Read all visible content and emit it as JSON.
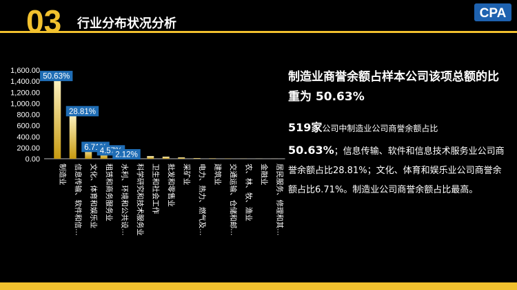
{
  "header": {
    "section_number": "03",
    "section_title": "行业分布状况分析",
    "logo_text": "CPA"
  },
  "colors": {
    "accent": "#F2C12E",
    "label_box": "#1F6DB5",
    "bar_top": "#FFF6C8",
    "bar_bottom": "#C79A10"
  },
  "chart_data": {
    "type": "bar",
    "categories": [
      "制造业",
      "信息传输、软件和信…",
      "文化、体育和娱乐业",
      "租赁和商务服务业",
      "水利、环境和公共设…",
      "科学研究和技术服务业",
      "卫生和社会工作",
      "批发和零售业",
      "采矿业",
      "电力、热力、燃气及…",
      "建筑业",
      "交通运输、仓储和邮…",
      "农、林、牧、渔业",
      "金融业",
      "居民服务、修理和其…"
    ],
    "values": [
      1475,
      840,
      195,
      133,
      62,
      55,
      48,
      38,
      25,
      12,
      8,
      6,
      4,
      3,
      2
    ],
    "data_labels": [
      "50.63%",
      "28.81%",
      "6.71%",
      "4.57%",
      "2.12%",
      "",
      "",
      "",
      "",
      "",
      "",
      "",
      "",
      "",
      ""
    ],
    "yticks": [
      "0.00",
      "200.00",
      "400.00",
      "600.00",
      "800.00",
      "1,000.00",
      "1,200.00",
      "1,400.00",
      "1,600.00"
    ],
    "ylim": [
      0,
      1600
    ],
    "title": "",
    "xlabel": "",
    "ylabel": ""
  },
  "right": {
    "headline": "制造业商誉余额占样本公司该项总额的比重为 50.63%",
    "count_big": "519家",
    "count_text": "公司中制造业公司商誉余额占比",
    "pct_big": "50.63%",
    "desc_text": "；信息传输、软件和信息技术服务业公司商誉余额占比28.81%；文化、体育和娱乐业公司商誉余额占比6.71%。制造业公司商誉余额占比最高。"
  }
}
